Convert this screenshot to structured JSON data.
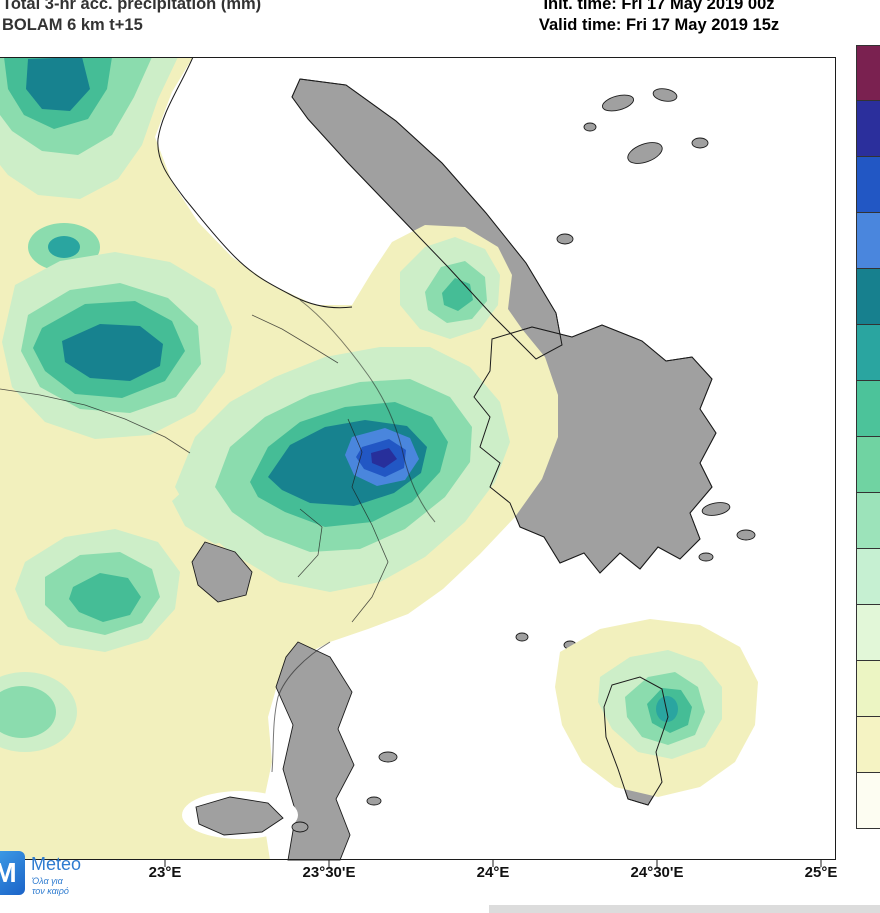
{
  "header": {
    "title_line1": "Total 3-hr acc. precipitation (mm)",
    "title_line2": "BOLAM 6 km t+15",
    "init_time": "Init. time: Fri 17 May 2019 00z",
    "valid_time": "Valid time: Fri 17 May 2019 15z"
  },
  "axis": {
    "x_ticks": [
      "23°E",
      "23°30'E",
      "24°E",
      "24°30'E",
      "25°E"
    ]
  },
  "colorbar": {
    "colors": [
      "#7a2150",
      "#2b2f9c",
      "#2257c4",
      "#4a86dd",
      "#17808e",
      "#2aa5a0",
      "#4cc39a",
      "#70d3a2",
      "#9ce3ba",
      "#c6f0d2",
      "#e2f7d8",
      "#ecf5c3",
      "#f5f3c3",
      "#fdfdf2"
    ]
  },
  "map_colors": {
    "sea": "#ffffff",
    "land": "#a0a0a0",
    "coast": "#1c1c1c",
    "level_pale_yellow": "#f2f0bd",
    "level_light_green": "#cdeec8",
    "level_green": "#8bdcae",
    "level_teal_green": "#45bd96",
    "level_teal": "#2aa5a0",
    "level_dark_teal": "#17828f",
    "level_blue": "#4a86dd",
    "level_mid_blue": "#2257c4",
    "level_navy": "#272f9b"
  },
  "logo": {
    "mark": "M",
    "brand": "Meteo",
    "tagline_line1": "Όλα για",
    "tagline_line2": "τον καιρό"
  }
}
